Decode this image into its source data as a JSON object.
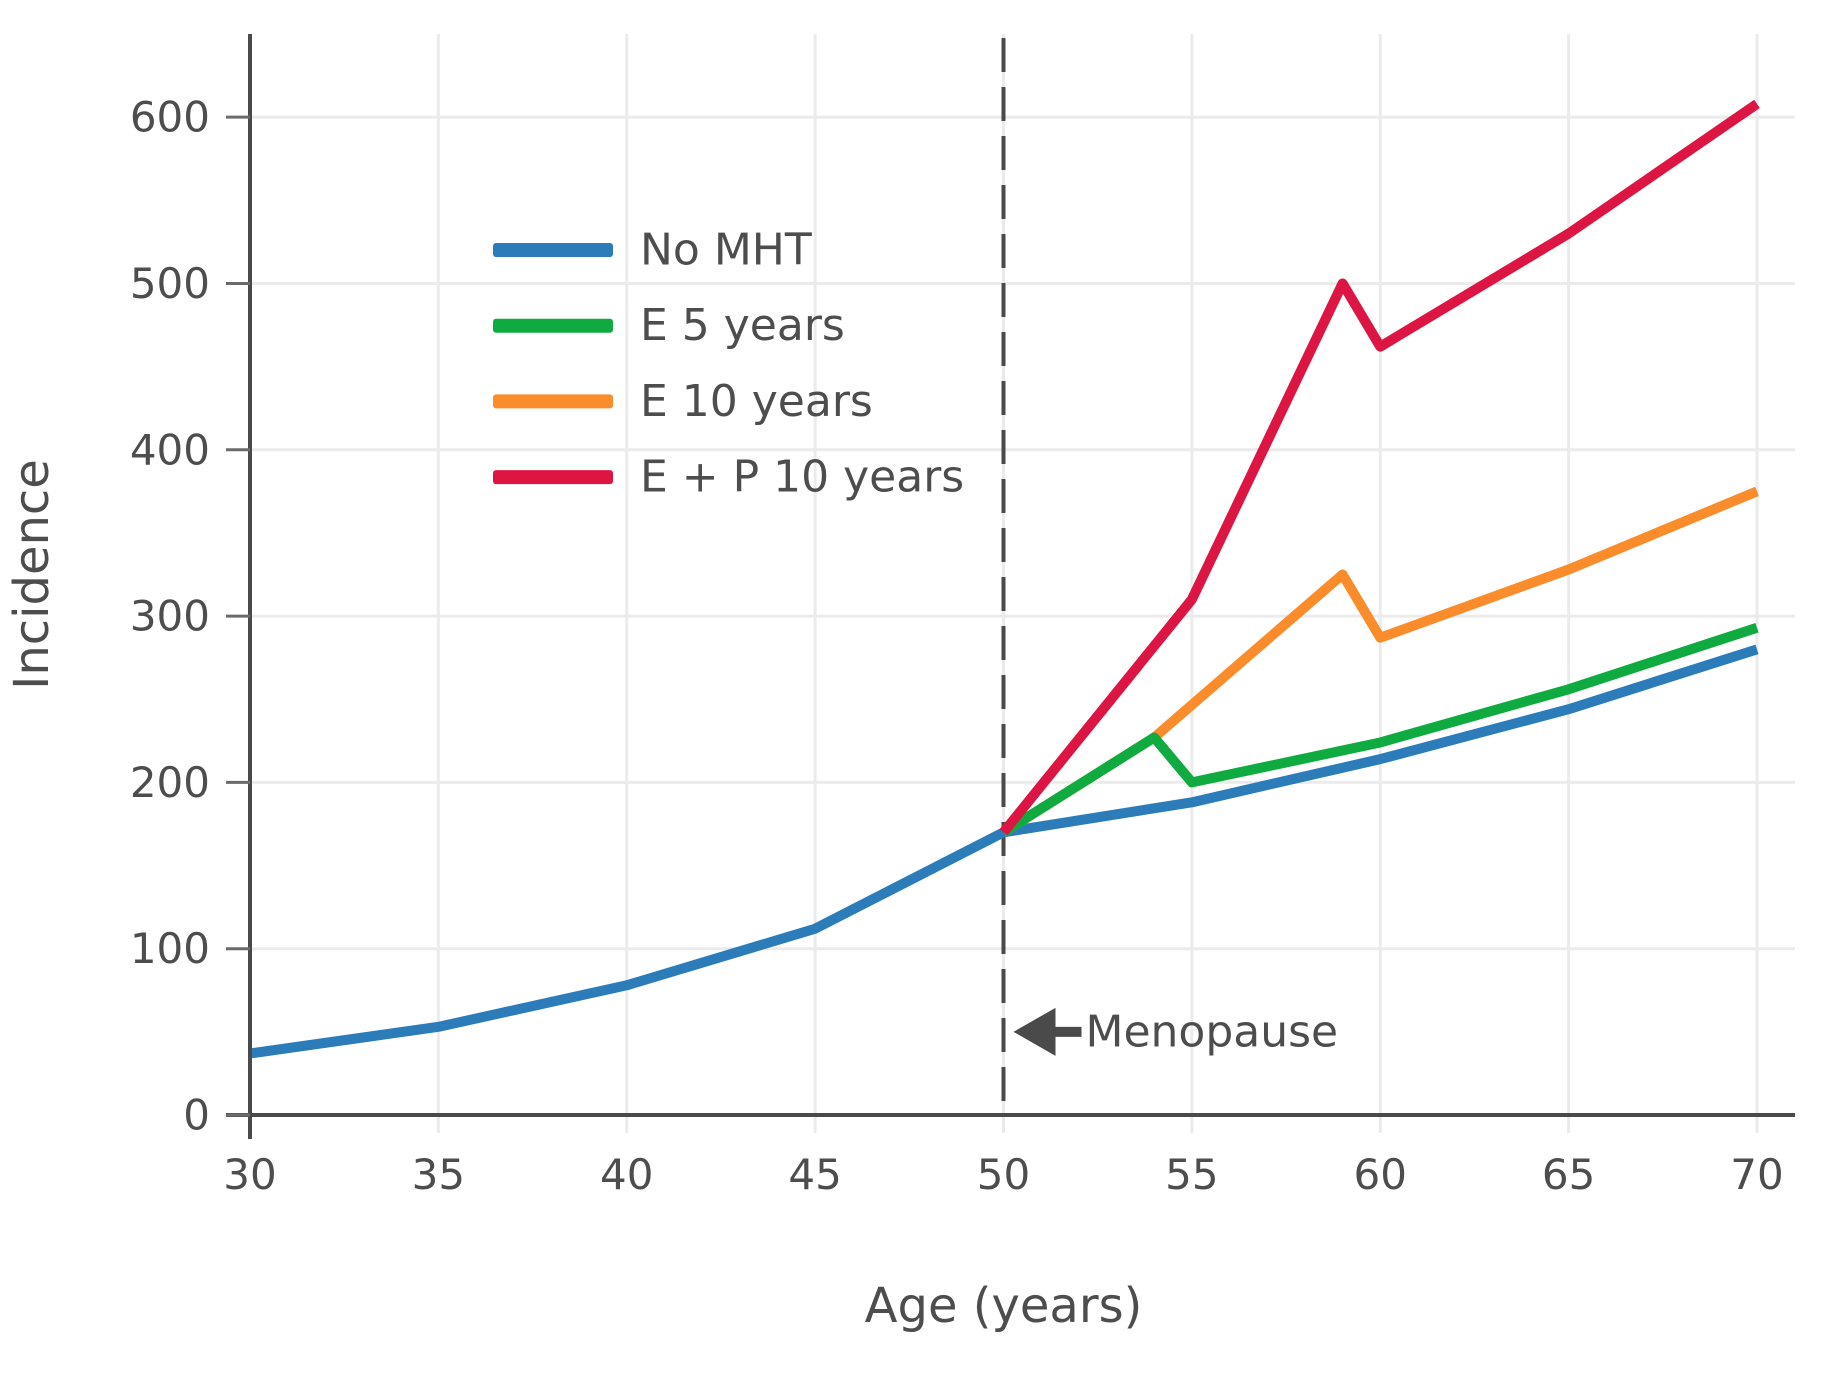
{
  "figure": {
    "background": "#ffffff",
    "text_color": "#4d4d4d",
    "axis_color": "#4a4a4a",
    "grid_color": "#ebebeb",
    "tick_color": "#6b6b6b"
  },
  "chart_data": {
    "type": "line",
    "title": "",
    "xlabel": "Age (years)",
    "ylabel": "Incidence",
    "xlim": [
      30,
      70
    ],
    "ylim": [
      0,
      650
    ],
    "x_ticks": [
      30,
      35,
      40,
      45,
      50,
      55,
      60,
      65,
      70
    ],
    "y_ticks": [
      0,
      100,
      200,
      300,
      400,
      500,
      600
    ],
    "grid": true,
    "legend_position": "upper-left",
    "series": [
      {
        "name": "No MHT",
        "color": "#2b7cb9",
        "points": [
          [
            30,
            37
          ],
          [
            35,
            53
          ],
          [
            40,
            78
          ],
          [
            45,
            112
          ],
          [
            50,
            170
          ],
          [
            55,
            188
          ],
          [
            60,
            214
          ],
          [
            65,
            244
          ],
          [
            70,
            280
          ]
        ]
      },
      {
        "name": "E 5 years",
        "color": "#0fab40",
        "points": [
          [
            50,
            170
          ],
          [
            54,
            227
          ],
          [
            55,
            200
          ],
          [
            60,
            224
          ],
          [
            65,
            256
          ],
          [
            70,
            293
          ]
        ]
      },
      {
        "name": "E 10 years",
        "color": "#fb8c2b",
        "points": [
          [
            50,
            170
          ],
          [
            54,
            227
          ],
          [
            59,
            325
          ],
          [
            60,
            287
          ],
          [
            65,
            328
          ],
          [
            70,
            375
          ]
        ]
      },
      {
        "name": "E + P 10 years",
        "color": "#dc1543",
        "points": [
          [
            50,
            170
          ],
          [
            55,
            310
          ],
          [
            59,
            500
          ],
          [
            60,
            462
          ],
          [
            65,
            530
          ],
          [
            70,
            608
          ]
        ]
      }
    ],
    "annotation": {
      "type": "vertical-dashed-line",
      "x": 50,
      "arrow_icon": "left-arrow",
      "label": "Menopause",
      "label_y": 50
    }
  }
}
